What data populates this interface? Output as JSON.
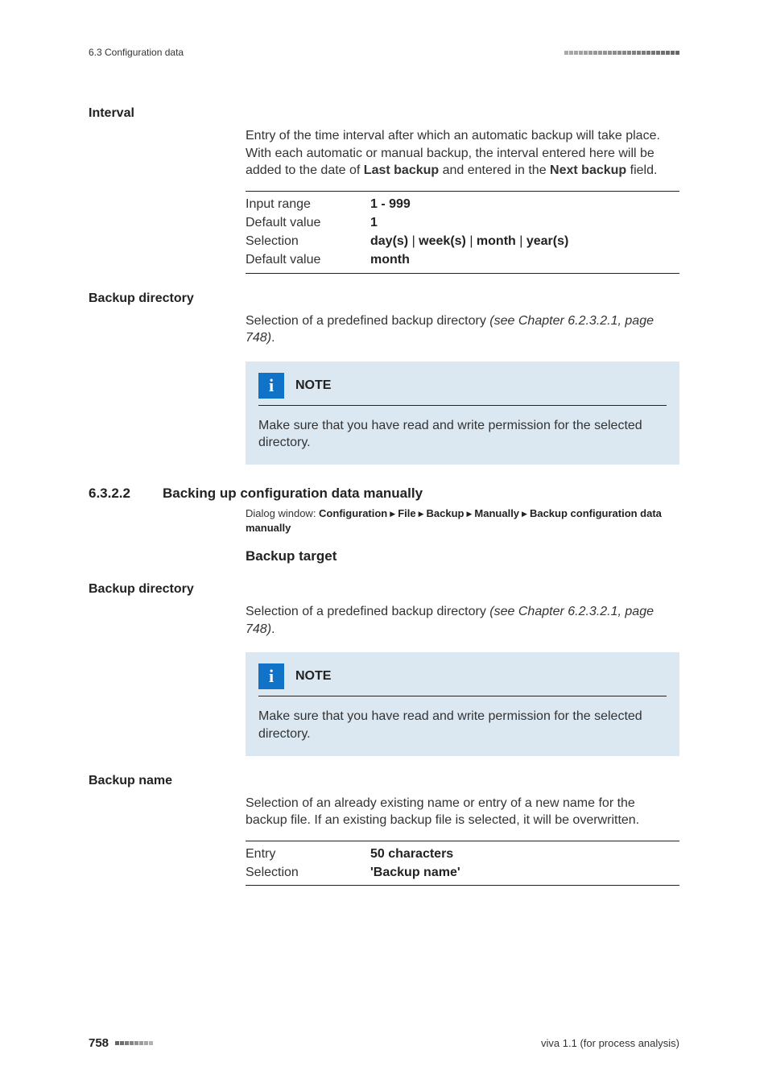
{
  "header": {
    "section_ref": "6.3 Configuration data",
    "tick_count": 24
  },
  "interval": {
    "heading": "Interval",
    "para_1": "Entry of the time interval after which an automatic backup will take place. With each automatic or manual backup, the interval entered here will be added to the date of ",
    "bold_1": "Last backup",
    "para_2": " and entered in the ",
    "bold_2": "Next backup",
    "para_3": " field.",
    "rows": [
      {
        "label": "Input range",
        "value": "1 - 999",
        "bold": true
      },
      {
        "label": "Default value",
        "value": "1",
        "bold": true
      },
      {
        "label": "Selection",
        "value": "day(s) | week(s) | month | year(s)",
        "bold": true
      },
      {
        "label": "Default value",
        "value": "month",
        "bold": true
      }
    ]
  },
  "backup_dir_1": {
    "heading": "Backup directory",
    "para_pre": "Selection of a predefined backup directory ",
    "para_italic": "(see Chapter 6.2.3.2.1, page 748)",
    "para_post": "."
  },
  "note": {
    "title": "NOTE",
    "text": "Make sure that you have read and write permission for the selected directory."
  },
  "section": {
    "num": "6.3.2.2",
    "title": "Backing up configuration data manually",
    "dialog_label": "Dialog window: ",
    "path": [
      "Configuration",
      "File",
      "Backup",
      "Manually",
      "Backup configuration data manually"
    ],
    "subhead": "Backup target"
  },
  "backup_dir_2": {
    "heading": "Backup directory",
    "para_pre": "Selection of a predefined backup directory ",
    "para_italic": "(see Chapter 6.2.3.2.1, page 748)",
    "para_post": "."
  },
  "backup_name": {
    "heading": "Backup name",
    "para": "Selection of an already existing name or entry of a new name for the backup file. If an existing backup file is selected, it will be overwritten.",
    "rows": [
      {
        "label": "Entry",
        "value": "50 characters"
      },
      {
        "label": "Selection",
        "value": "'Backup name'"
      }
    ]
  },
  "footer": {
    "page": "758",
    "tick_count": 8,
    "right": "viva 1.1 (for process analysis)"
  },
  "colors": {
    "note_bg": "#dbe8f2",
    "icon_bg": "#1173c7",
    "tick": "#9a9a9a",
    "text": "#333333"
  }
}
